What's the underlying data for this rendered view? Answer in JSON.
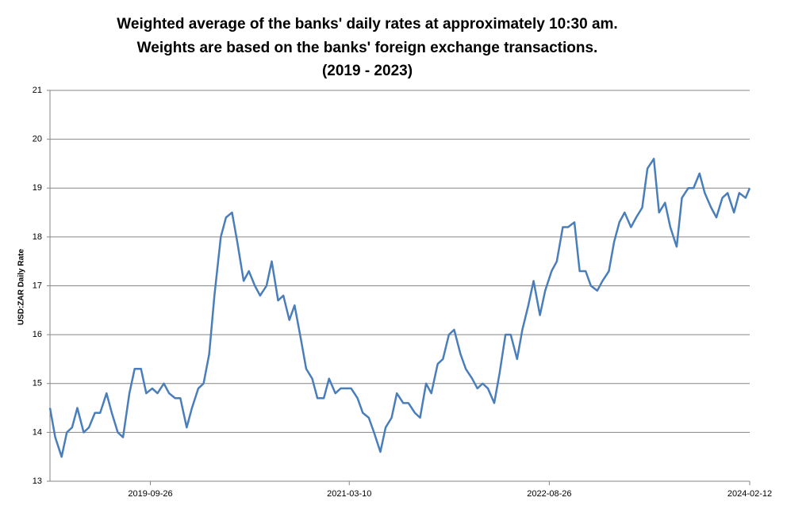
{
  "chart_data": {
    "type": "line",
    "title": [
      "Weighted average of the banks' daily rates at approximately 10:30 am.",
      "Weights are based on the banks' foreign exchange transactions.",
      "(2019 - 2023)"
    ],
    "y_label": "USD:ZAR Daily Rate",
    "x": [
      "2019-01-01",
      "2019-01-15",
      "2019-02-01",
      "2019-02-15",
      "2019-03-01",
      "2019-03-15",
      "2019-04-01",
      "2019-04-15",
      "2019-05-01",
      "2019-05-15",
      "2019-06-01",
      "2019-06-15",
      "2019-07-01",
      "2019-07-15",
      "2019-08-01",
      "2019-08-15",
      "2019-09-01",
      "2019-09-15",
      "2019-10-01",
      "2019-10-15",
      "2019-11-01",
      "2019-11-15",
      "2019-12-01",
      "2019-12-15",
      "2020-01-01",
      "2020-01-15",
      "2020-02-01",
      "2020-02-15",
      "2020-03-01",
      "2020-03-15",
      "2020-04-01",
      "2020-04-15",
      "2020-05-01",
      "2020-05-15",
      "2020-06-01",
      "2020-06-15",
      "2020-07-01",
      "2020-07-15",
      "2020-08-01",
      "2020-08-15",
      "2020-09-01",
      "2020-09-15",
      "2020-10-01",
      "2020-10-15",
      "2020-11-01",
      "2020-11-15",
      "2020-12-01",
      "2020-12-15",
      "2021-01-01",
      "2021-01-15",
      "2021-02-01",
      "2021-02-15",
      "2021-03-01",
      "2021-03-15",
      "2021-04-01",
      "2021-04-15",
      "2021-05-01",
      "2021-05-15",
      "2021-06-01",
      "2021-06-15",
      "2021-07-01",
      "2021-07-15",
      "2021-08-01",
      "2021-08-15",
      "2021-09-01",
      "2021-09-15",
      "2021-10-01",
      "2021-10-15",
      "2021-11-01",
      "2021-11-15",
      "2021-12-01",
      "2021-12-15",
      "2022-01-01",
      "2022-01-15",
      "2022-02-01",
      "2022-02-15",
      "2022-03-01",
      "2022-03-15",
      "2022-04-01",
      "2022-04-15",
      "2022-05-01",
      "2022-05-15",
      "2022-06-01",
      "2022-06-15",
      "2022-07-01",
      "2022-07-15",
      "2022-08-01",
      "2022-08-15",
      "2022-09-01",
      "2022-09-15",
      "2022-10-01",
      "2022-10-15",
      "2022-11-01",
      "2022-11-15",
      "2022-12-01",
      "2022-12-15",
      "2023-01-01",
      "2023-01-15",
      "2023-02-01",
      "2023-02-15",
      "2023-03-01",
      "2023-03-15",
      "2023-04-01",
      "2023-04-15",
      "2023-05-01",
      "2023-05-15",
      "2023-06-01",
      "2023-06-15",
      "2023-07-01",
      "2023-07-15",
      "2023-08-01",
      "2023-08-15",
      "2023-09-01",
      "2023-09-15",
      "2023-10-01",
      "2023-10-15",
      "2023-11-01",
      "2023-11-15",
      "2023-12-01",
      "2023-12-15",
      "2024-01-01",
      "2024-01-15",
      "2024-02-01",
      "2024-02-12"
    ],
    "series": [
      {
        "name": "USD:ZAR",
        "color": "#4a7ebb",
        "values": [
          14.5,
          13.9,
          13.5,
          14.0,
          14.1,
          14.5,
          14.0,
          14.1,
          14.4,
          14.4,
          14.8,
          14.4,
          14.0,
          13.9,
          14.8,
          15.3,
          15.3,
          14.8,
          14.9,
          14.8,
          15.0,
          14.8,
          14.7,
          14.7,
          14.1,
          14.5,
          14.9,
          15.0,
          15.6,
          16.8,
          18.0,
          18.4,
          18.5,
          17.9,
          17.1,
          17.3,
          17.0,
          16.8,
          17.0,
          17.5,
          16.7,
          16.8,
          16.3,
          16.6,
          15.9,
          15.3,
          15.1,
          14.7,
          14.7,
          15.1,
          14.8,
          14.9,
          14.9,
          14.9,
          14.7,
          14.4,
          14.3,
          14.0,
          13.6,
          14.1,
          14.3,
          14.8,
          14.6,
          14.6,
          14.4,
          14.3,
          15.0,
          14.8,
          15.4,
          15.5,
          16.0,
          16.1,
          15.6,
          15.3,
          15.1,
          14.9,
          15.0,
          14.9,
          14.6,
          15.2,
          16.0,
          16.0,
          15.5,
          16.1,
          16.6,
          17.1,
          16.4,
          16.9,
          17.3,
          17.5,
          18.2,
          18.2,
          18.3,
          17.3,
          17.3,
          17.0,
          16.9,
          17.1,
          17.3,
          17.9,
          18.3,
          18.5,
          18.2,
          18.4,
          18.6,
          19.4,
          19.6,
          18.5,
          18.7,
          18.2,
          17.8,
          18.8,
          19.0,
          19.0,
          19.3,
          18.9,
          18.6,
          18.4,
          18.8,
          18.9,
          18.5,
          18.9,
          18.8,
          19.0
        ]
      }
    ],
    "xlim": [
      "2019-01-01",
      "2024-02-12"
    ],
    "xticks": [
      "2019-09-26",
      "2021-03-10",
      "2022-08-26",
      "2024-02-12"
    ],
    "ylim": [
      13,
      21
    ],
    "yticks": [
      13,
      14,
      15,
      16,
      17,
      18,
      19,
      20,
      21
    ],
    "grid": true
  }
}
